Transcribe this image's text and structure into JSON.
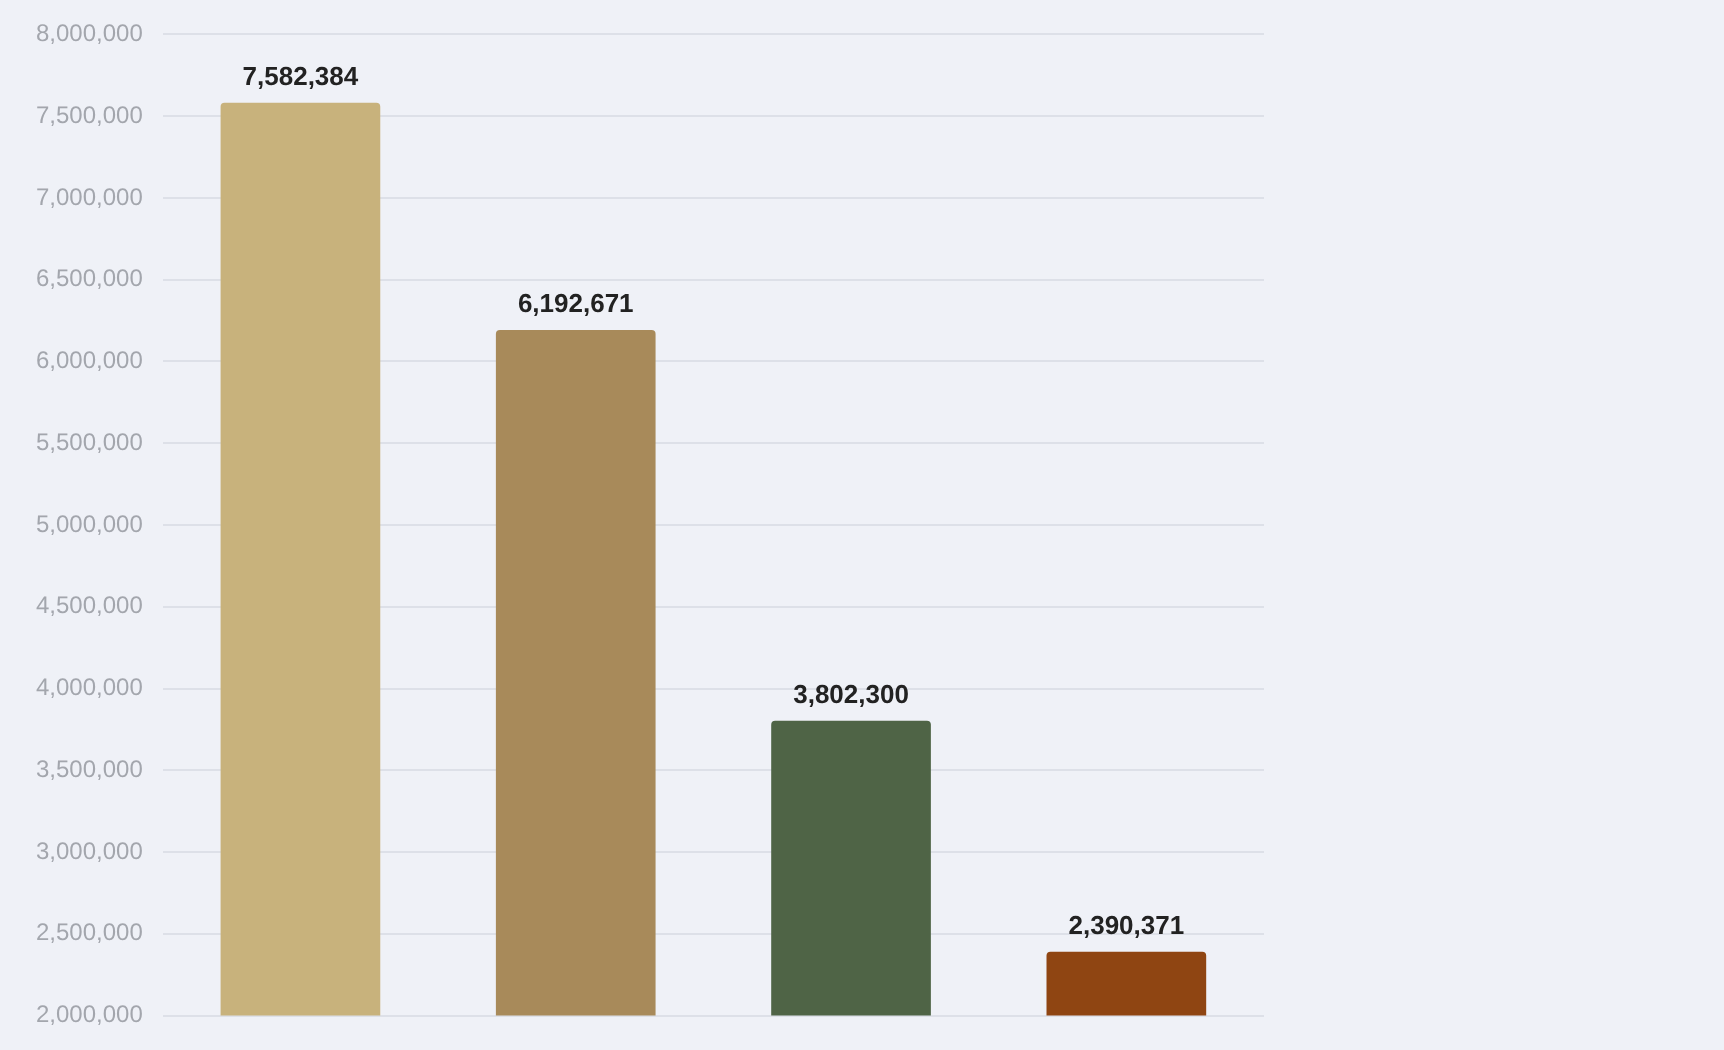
{
  "chart_data": {
    "type": "bar",
    "categories": [
      null,
      null,
      null,
      null
    ],
    "values": [
      7582384,
      6192671,
      3802300,
      2390371
    ],
    "colors": [
      "#c8b27c",
      "#a88a5a",
      "#4f6446",
      "#8f4512"
    ],
    "ylim": [
      2000000,
      8000000
    ],
    "yticks": [
      {
        "value": 2000000,
        "label": "2,000,000"
      },
      {
        "value": 2500000,
        "label": "2,500,000"
      },
      {
        "value": 3000000,
        "label": "3,000,000"
      },
      {
        "value": 3500000,
        "label": "3,500,000"
      },
      {
        "value": 4000000,
        "label": "4,000,000"
      },
      {
        "value": 4500000,
        "label": "4,500,000"
      },
      {
        "value": 5000000,
        "label": "5,000,000"
      },
      {
        "value": 5500000,
        "label": "5,500,000"
      },
      {
        "value": 6000000,
        "label": "6,000,000"
      },
      {
        "value": 6500000,
        "label": "6,500,000"
      },
      {
        "value": 7000000,
        "label": "7,000,000"
      },
      {
        "value": 7500000,
        "label": "7,500,000"
      },
      {
        "value": 8000000,
        "label": "8,000,000"
      }
    ],
    "grid": "y",
    "value_labels": [
      "7,582,384",
      "6,192,671",
      "3,802,300",
      "2,390,371"
    ]
  }
}
